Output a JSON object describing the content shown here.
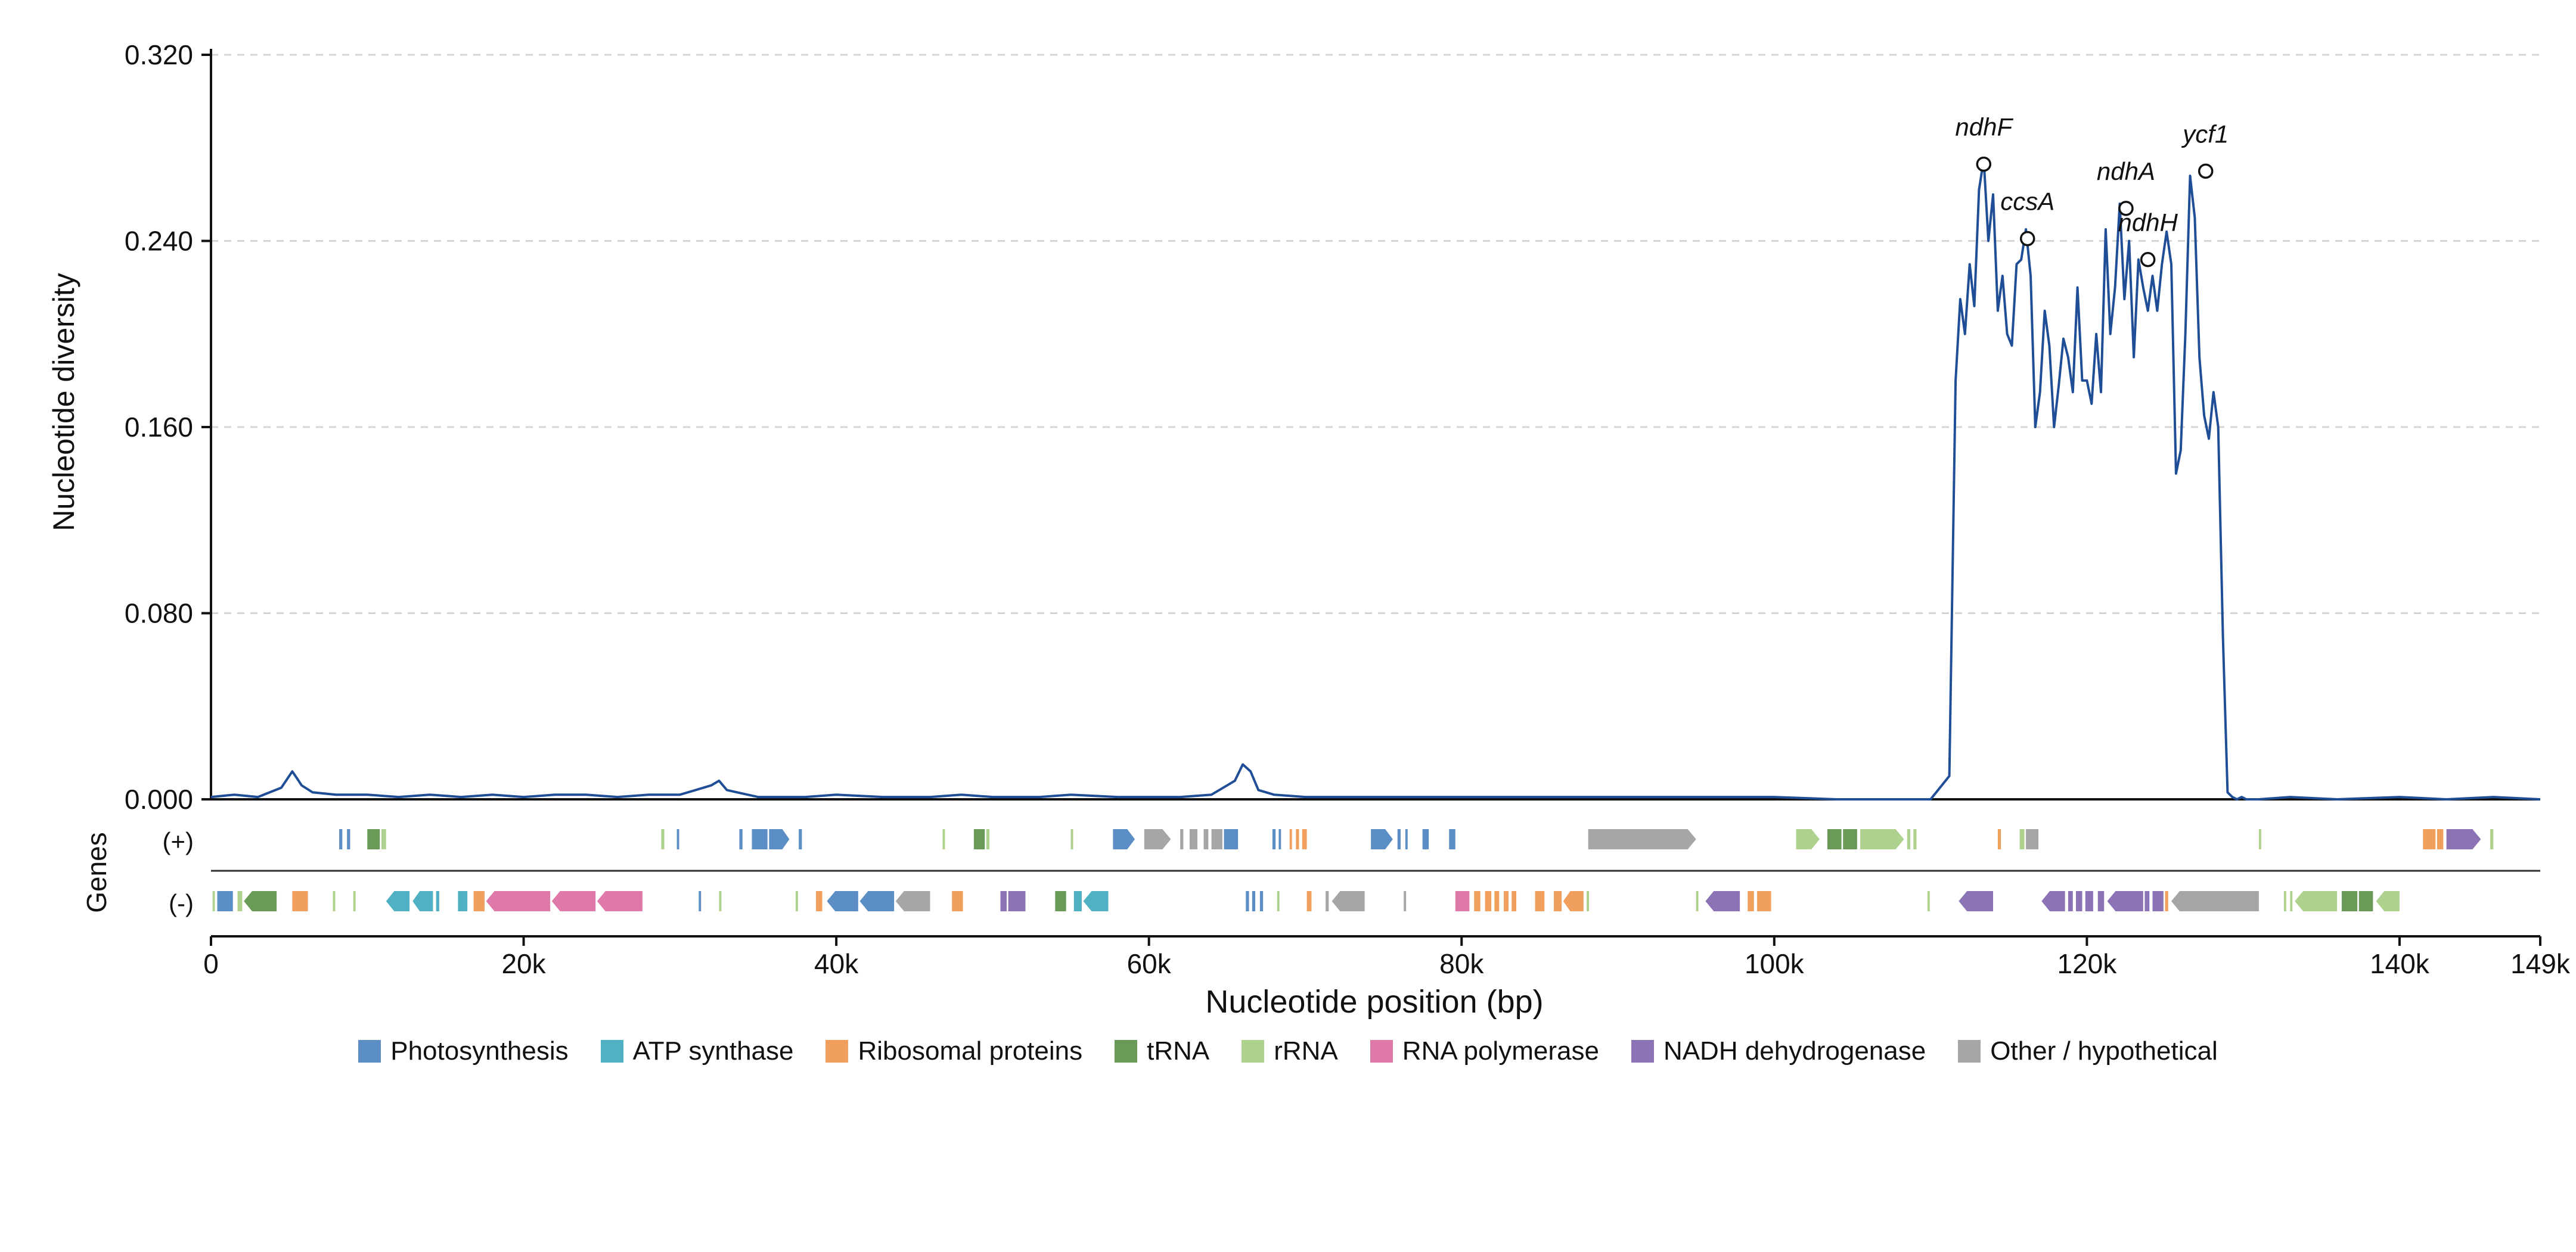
{
  "chart_data": {
    "type": "line",
    "ylabel": "Nucleotide diversity",
    "xlabel": "Nucleotide position (bp)",
    "genes_label": "Genes",
    "strand_labels": [
      "(+)",
      "(-)"
    ],
    "y_ticks": [
      "0.000",
      "0.080",
      "0.160",
      "0.240",
      "0.320"
    ],
    "ylim": [
      0,
      0.32
    ],
    "x_ticks": [
      "0",
      "20k",
      "40k",
      "60k",
      "80k",
      "100k",
      "120k",
      "140k",
      "149k"
    ],
    "xlim": [
      0,
      149000
    ],
    "grid": true,
    "legend_position": "bottom",
    "line_color": "#1f4e96",
    "series": [
      {
        "x": [
          0,
          1500,
          3000,
          4500,
          5200,
          5500,
          5800,
          6500,
          8000,
          10000,
          12000,
          14000,
          16000,
          18000,
          20000,
          22000,
          24000,
          26000,
          28000,
          30000,
          31000,
          32000,
          32500,
          33000,
          35000,
          38000,
          40000,
          43000,
          46000,
          48000,
          50000,
          53000,
          55000,
          58000,
          60000,
          62000,
          64000,
          65500,
          66000,
          66500,
          67000,
          68000,
          70000,
          72000,
          75000,
          80000,
          85000,
          90000,
          95000,
          100000,
          104000,
          108000,
          110000,
          111200,
          111600,
          111900,
          112200,
          112500,
          112800,
          113100,
          113400,
          113700,
          114000,
          114300,
          114600,
          114900,
          115200,
          115500,
          115800,
          116100,
          116400,
          116700,
          117000,
          117300,
          117600,
          117900,
          118200,
          118500,
          118800,
          119100,
          119400,
          119700,
          120000,
          120300,
          120600,
          120900,
          121200,
          121500,
          121800,
          122100,
          122400,
          122700,
          123000,
          123300,
          123600,
          123900,
          124200,
          124500,
          124800,
          125100,
          125400,
          125700,
          126000,
          126300,
          126600,
          126900,
          127200,
          127500,
          127800,
          128100,
          128400,
          128700,
          129000,
          129300,
          129600,
          129900,
          130200,
          130500,
          131000,
          133000,
          136000,
          140000,
          143000,
          146000,
          149000
        ],
        "y": [
          0.001,
          0.002,
          0.001,
          0.005,
          0.012,
          0.009,
          0.006,
          0.003,
          0.002,
          0.002,
          0.001,
          0.002,
          0.001,
          0.002,
          0.001,
          0.002,
          0.002,
          0.001,
          0.002,
          0.002,
          0.004,
          0.006,
          0.008,
          0.004,
          0.001,
          0.001,
          0.002,
          0.001,
          0.001,
          0.002,
          0.001,
          0.001,
          0.002,
          0.001,
          0.001,
          0.001,
          0.002,
          0.008,
          0.015,
          0.012,
          0.004,
          0.002,
          0.001,
          0.001,
          0.001,
          0.001,
          0.001,
          0.001,
          0.001,
          0.001,
          0.0,
          0.0,
          0.0,
          0.01,
          0.18,
          0.215,
          0.2,
          0.23,
          0.212,
          0.262,
          0.275,
          0.24,
          0.26,
          0.21,
          0.225,
          0.2,
          0.195,
          0.23,
          0.232,
          0.245,
          0.225,
          0.16,
          0.175,
          0.21,
          0.195,
          0.16,
          0.178,
          0.198,
          0.19,
          0.175,
          0.22,
          0.18,
          0.18,
          0.17,
          0.2,
          0.175,
          0.245,
          0.2,
          0.22,
          0.256,
          0.215,
          0.24,
          0.19,
          0.232,
          0.22,
          0.21,
          0.225,
          0.21,
          0.23,
          0.244,
          0.23,
          0.14,
          0.15,
          0.2,
          0.268,
          0.25,
          0.19,
          0.165,
          0.155,
          0.175,
          0.16,
          0.07,
          0.003,
          0.001,
          0.0,
          0.001,
          0.0,
          0.0,
          0.0,
          0.001,
          0.0,
          0.001,
          0.0,
          0.001,
          0.0
        ]
      }
    ],
    "annotations": [
      {
        "label": "ndhF",
        "x": 113400,
        "y": 0.273
      },
      {
        "label": "ccsA",
        "x": 116200,
        "y": 0.241
      },
      {
        "label": "ndhA",
        "x": 122500,
        "y": 0.254
      },
      {
        "label": "ndhH",
        "x": 123900,
        "y": 0.232
      },
      {
        "label": "ycf1",
        "x": 127600,
        "y": 0.27
      }
    ],
    "categories": [
      {
        "name": "Photosynthesis",
        "color": "#5b8ec4"
      },
      {
        "name": "ATP synthase",
        "color": "#4fb1c3"
      },
      {
        "name": "Ribosomal proteins",
        "color": "#f0a05c"
      },
      {
        "name": "tRNA",
        "color": "#6a9a58"
      },
      {
        "name": "rRNA",
        "color": "#aed18e"
      },
      {
        "name": "RNA polymerase",
        "color": "#de79a9"
      },
      {
        "name": "NADH dehydrogenase",
        "color": "#8c73b5"
      },
      {
        "name": "Other / hypothetical",
        "color": "#a6a6a6"
      }
    ],
    "genes_plus": [
      {
        "start": 8200,
        "end": 8400,
        "cat": 0
      },
      {
        "start": 8700,
        "end": 8900,
        "cat": 0
      },
      {
        "start": 10000,
        "end": 10800,
        "cat": 3
      },
      {
        "start": 10900,
        "end": 11200,
        "cat": 4
      },
      {
        "start": 28800,
        "end": 29000,
        "cat": 4
      },
      {
        "start": 29800,
        "end": 29950,
        "cat": 0
      },
      {
        "start": 33800,
        "end": 34000,
        "cat": 0
      },
      {
        "start": 34600,
        "end": 35600,
        "cat": 0
      },
      {
        "start": 35700,
        "end": 37000,
        "cat": 0
      },
      {
        "start": 37600,
        "end": 37800,
        "cat": 0
      },
      {
        "start": 46800,
        "end": 46950,
        "cat": 4
      },
      {
        "start": 48800,
        "end": 49500,
        "cat": 3
      },
      {
        "start": 49600,
        "end": 49800,
        "cat": 4
      },
      {
        "start": 55000,
        "end": 55150,
        "cat": 4
      },
      {
        "start": 57700,
        "end": 59100,
        "cat": 0
      },
      {
        "start": 59700,
        "end": 61400,
        "cat": 7
      },
      {
        "start": 62000,
        "end": 62200,
        "cat": 7
      },
      {
        "start": 62600,
        "end": 63100,
        "cat": 7
      },
      {
        "start": 63500,
        "end": 63800,
        "cat": 7
      },
      {
        "start": 64000,
        "end": 64700,
        "cat": 7
      },
      {
        "start": 64800,
        "end": 65700,
        "cat": 0
      },
      {
        "start": 67900,
        "end": 68100,
        "cat": 0
      },
      {
        "start": 68300,
        "end": 68450,
        "cat": 0
      },
      {
        "start": 69000,
        "end": 69150,
        "cat": 2
      },
      {
        "start": 69400,
        "end": 69600,
        "cat": 2
      },
      {
        "start": 69800,
        "end": 70100,
        "cat": 2
      },
      {
        "start": 74200,
        "end": 75600,
        "cat": 0
      },
      {
        "start": 75900,
        "end": 76100,
        "cat": 0
      },
      {
        "start": 76400,
        "end": 76550,
        "cat": 0
      },
      {
        "start": 77500,
        "end": 77900,
        "cat": 0
      },
      {
        "start": 79200,
        "end": 79600,
        "cat": 0
      },
      {
        "start": 88100,
        "end": 95000,
        "cat": 7
      },
      {
        "start": 101400,
        "end": 102900,
        "cat": 4
      },
      {
        "start": 103400,
        "end": 104300,
        "cat": 3
      },
      {
        "start": 104400,
        "end": 105300,
        "cat": 3
      },
      {
        "start": 105500,
        "end": 108300,
        "cat": 4
      },
      {
        "start": 108500,
        "end": 108700,
        "cat": 4
      },
      {
        "start": 108900,
        "end": 109100,
        "cat": 4
      },
      {
        "start": 114300,
        "end": 114500,
        "cat": 2
      },
      {
        "start": 115700,
        "end": 116000,
        "cat": 4
      },
      {
        "start": 116100,
        "end": 116900,
        "cat": 7
      },
      {
        "start": 131000,
        "end": 131150,
        "cat": 4
      },
      {
        "start": 141500,
        "end": 142300,
        "cat": 2
      },
      {
        "start": 142400,
        "end": 142800,
        "cat": 2
      },
      {
        "start": 143000,
        "end": 145200,
        "cat": 6
      },
      {
        "start": 145800,
        "end": 146000,
        "cat": 4
      }
    ],
    "genes_minus": [
      {
        "start": 100,
        "end": 250,
        "cat": 4
      },
      {
        "start": 400,
        "end": 1400,
        "cat": 0
      },
      {
        "start": 1700,
        "end": 2000,
        "cat": 4
      },
      {
        "start": 2100,
        "end": 4200,
        "cat": 3
      },
      {
        "start": 5200,
        "end": 6200,
        "cat": 2
      },
      {
        "start": 7800,
        "end": 7950,
        "cat": 4
      },
      {
        "start": 9100,
        "end": 9250,
        "cat": 4
      },
      {
        "start": 11200,
        "end": 12700,
        "cat": 1
      },
      {
        "start": 12900,
        "end": 14200,
        "cat": 1
      },
      {
        "start": 14400,
        "end": 14600,
        "cat": 1
      },
      {
        "start": 15800,
        "end": 16400,
        "cat": 1
      },
      {
        "start": 16800,
        "end": 17500,
        "cat": 2
      },
      {
        "start": 17600,
        "end": 21700,
        "cat": 5
      },
      {
        "start": 21800,
        "end": 24600,
        "cat": 5
      },
      {
        "start": 24700,
        "end": 27600,
        "cat": 5
      },
      {
        "start": 31200,
        "end": 31350,
        "cat": 0
      },
      {
        "start": 32500,
        "end": 32650,
        "cat": 4
      },
      {
        "start": 37400,
        "end": 37550,
        "cat": 4
      },
      {
        "start": 38700,
        "end": 39100,
        "cat": 2
      },
      {
        "start": 39400,
        "end": 41400,
        "cat": 0
      },
      {
        "start": 41500,
        "end": 43700,
        "cat": 0
      },
      {
        "start": 43800,
        "end": 46000,
        "cat": 7
      },
      {
        "start": 47400,
        "end": 48100,
        "cat": 2
      },
      {
        "start": 50500,
        "end": 50900,
        "cat": 6
      },
      {
        "start": 51000,
        "end": 52100,
        "cat": 6
      },
      {
        "start": 54000,
        "end": 54700,
        "cat": 3
      },
      {
        "start": 55200,
        "end": 55700,
        "cat": 1
      },
      {
        "start": 55800,
        "end": 57400,
        "cat": 1
      },
      {
        "start": 66200,
        "end": 66400,
        "cat": 0
      },
      {
        "start": 66600,
        "end": 66800,
        "cat": 0
      },
      {
        "start": 67100,
        "end": 67300,
        "cat": 0
      },
      {
        "start": 68200,
        "end": 68350,
        "cat": 4
      },
      {
        "start": 70100,
        "end": 70400,
        "cat": 2
      },
      {
        "start": 71300,
        "end": 71500,
        "cat": 7
      },
      {
        "start": 71700,
        "end": 73800,
        "cat": 7
      },
      {
        "start": 76300,
        "end": 76450,
        "cat": 7
      },
      {
        "start": 79600,
        "end": 80500,
        "cat": 5
      },
      {
        "start": 80800,
        "end": 81200,
        "cat": 2
      },
      {
        "start": 81500,
        "end": 81900,
        "cat": 2
      },
      {
        "start": 82100,
        "end": 82400,
        "cat": 2
      },
      {
        "start": 82700,
        "end": 83000,
        "cat": 2
      },
      {
        "start": 83200,
        "end": 83500,
        "cat": 2
      },
      {
        "start": 84700,
        "end": 85300,
        "cat": 2
      },
      {
        "start": 85900,
        "end": 86400,
        "cat": 2
      },
      {
        "start": 86500,
        "end": 87800,
        "cat": 2
      },
      {
        "start": 88000,
        "end": 88150,
        "cat": 4
      },
      {
        "start": 95000,
        "end": 95150,
        "cat": 4
      },
      {
        "start": 95600,
        "end": 97800,
        "cat": 6
      },
      {
        "start": 98300,
        "end": 98700,
        "cat": 2
      },
      {
        "start": 98900,
        "end": 99800,
        "cat": 2
      },
      {
        "start": 109800,
        "end": 109950,
        "cat": 4
      },
      {
        "start": 111800,
        "end": 114000,
        "cat": 6
      },
      {
        "start": 117100,
        "end": 118600,
        "cat": 6
      },
      {
        "start": 118800,
        "end": 119100,
        "cat": 6
      },
      {
        "start": 119300,
        "end": 119700,
        "cat": 6
      },
      {
        "start": 119900,
        "end": 120400,
        "cat": 6
      },
      {
        "start": 120700,
        "end": 121100,
        "cat": 6
      },
      {
        "start": 121300,
        "end": 123600,
        "cat": 6
      },
      {
        "start": 123700,
        "end": 124000,
        "cat": 6
      },
      {
        "start": 124200,
        "end": 124900,
        "cat": 6
      },
      {
        "start": 125000,
        "end": 125200,
        "cat": 2
      },
      {
        "start": 125400,
        "end": 131000,
        "cat": 7
      },
      {
        "start": 132600,
        "end": 132750,
        "cat": 4
      },
      {
        "start": 133000,
        "end": 133150,
        "cat": 4
      },
      {
        "start": 133300,
        "end": 136000,
        "cat": 4
      },
      {
        "start": 136300,
        "end": 137300,
        "cat": 3
      },
      {
        "start": 137400,
        "end": 138300,
        "cat": 3
      },
      {
        "start": 138500,
        "end": 140000,
        "cat": 4
      }
    ]
  }
}
